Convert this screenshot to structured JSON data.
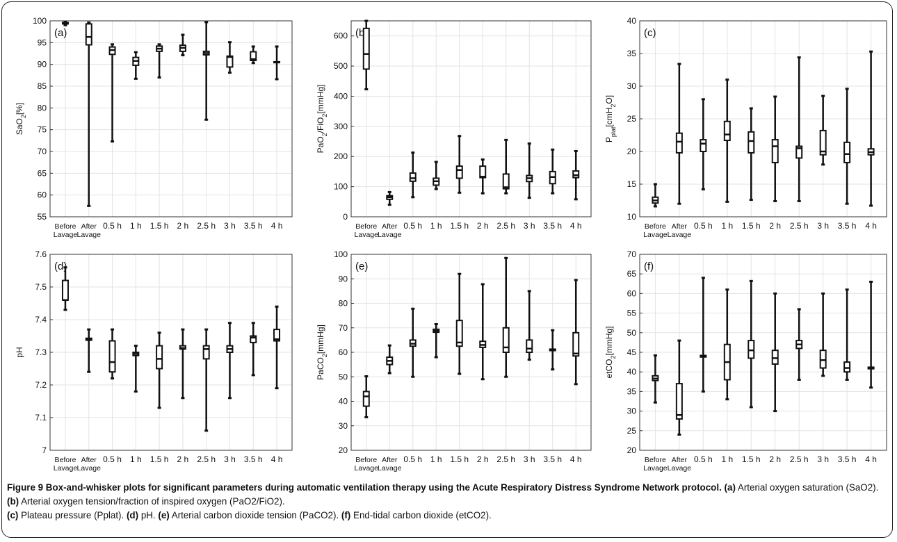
{
  "categories": [
    "Before Lavage",
    "After Lavage",
    "0.5 h",
    "1 h",
    "1.5 h",
    "2 h",
    "2.5 h",
    "3 h",
    "3.5 h",
    "4 h"
  ],
  "chart_data": [
    {
      "type": "boxplot",
      "panel_label": "(a)",
      "ylabel": "SaO2[%]",
      "ylim": [
        55,
        100
      ],
      "yticks": [
        55,
        60,
        65,
        70,
        75,
        80,
        85,
        90,
        95,
        100
      ],
      "grid": true,
      "boxes": [
        {
          "min": 99.0,
          "q1": 99.3,
          "median": 99.5,
          "q3": 99.6,
          "max": 99.8
        },
        {
          "min": 57.5,
          "q1": 94.5,
          "median": 96.3,
          "q3": 99.3,
          "max": 99.6
        },
        {
          "min": 72.3,
          "q1": 92.3,
          "median": 93.3,
          "q3": 94.0,
          "max": 94.6
        },
        {
          "min": 86.7,
          "q1": 89.8,
          "median": 90.8,
          "q3": 91.6,
          "max": 92.8
        },
        {
          "min": 87.0,
          "q1": 93.0,
          "median": 93.6,
          "q3": 94.2,
          "max": 94.6
        },
        {
          "min": 92.1,
          "q1": 93.0,
          "median": 93.8,
          "q3": 94.4,
          "max": 96.8
        },
        {
          "min": 77.3,
          "q1": 92.2,
          "median": 92.6,
          "q3": 93.0,
          "max": 99.7
        },
        {
          "min": 88.1,
          "q1": 89.4,
          "median": 91.7,
          "q3": 91.9,
          "max": 95.1
        },
        {
          "min": 90.3,
          "q1": 90.9,
          "median": 91.2,
          "q3": 92.9,
          "max": 94.1
        },
        {
          "min": 86.6,
          "q1": 90.4,
          "median": 90.5,
          "q3": 90.6,
          "max": 94.1
        }
      ]
    },
    {
      "type": "boxplot",
      "panel_label": "(b)",
      "ylabel": "PaO2/FiO2[mmHg]",
      "ylim": [
        0,
        650
      ],
      "yticks": [
        0,
        100,
        200,
        300,
        400,
        500,
        600
      ],
      "grid": true,
      "boxes": [
        {
          "min": 423,
          "q1": 490,
          "median": 540,
          "q3": 625,
          "max": 650
        },
        {
          "min": 40,
          "q1": 58,
          "median": 65,
          "q3": 70,
          "max": 82
        },
        {
          "min": 65,
          "q1": 118,
          "median": 128,
          "q3": 145,
          "max": 213
        },
        {
          "min": 92,
          "q1": 105,
          "median": 118,
          "q3": 128,
          "max": 182
        },
        {
          "min": 80,
          "q1": 128,
          "median": 155,
          "q3": 168,
          "max": 268
        },
        {
          "min": 78,
          "q1": 130,
          "median": 133,
          "q3": 168,
          "max": 190
        },
        {
          "min": 78,
          "q1": 93,
          "median": 98,
          "q3": 142,
          "max": 255
        },
        {
          "min": 63,
          "q1": 117,
          "median": 128,
          "q3": 137,
          "max": 243
        },
        {
          "min": 78,
          "q1": 110,
          "median": 132,
          "q3": 150,
          "max": 223
        },
        {
          "min": 58,
          "q1": 130,
          "median": 138,
          "q3": 152,
          "max": 218
        }
      ]
    },
    {
      "type": "boxplot",
      "panel_label": "(c)",
      "ylabel": "Pplat[cmH2O]",
      "ylim": [
        10,
        40
      ],
      "yticks": [
        10,
        15,
        20,
        25,
        30,
        35,
        40
      ],
      "grid": true,
      "boxes": [
        {
          "min": 11.6,
          "q1": 12.1,
          "median": 12.5,
          "q3": 13.0,
          "max": 15.0
        },
        {
          "min": 12.0,
          "q1": 19.8,
          "median": 21.5,
          "q3": 22.8,
          "max": 33.4
        },
        {
          "min": 14.2,
          "q1": 20.0,
          "median": 21.2,
          "q3": 21.8,
          "max": 28.0
        },
        {
          "min": 12.3,
          "q1": 21.7,
          "median": 22.6,
          "q3": 24.6,
          "max": 31.0
        },
        {
          "min": 12.6,
          "q1": 19.8,
          "median": 21.6,
          "q3": 23.0,
          "max": 26.6
        },
        {
          "min": 12.4,
          "q1": 18.3,
          "median": 20.8,
          "q3": 21.8,
          "max": 28.4
        },
        {
          "min": 12.4,
          "q1": 19.0,
          "median": 20.5,
          "q3": 20.8,
          "max": 34.4
        },
        {
          "min": 18.0,
          "q1": 19.5,
          "median": 20.0,
          "q3": 23.2,
          "max": 28.5
        },
        {
          "min": 12.0,
          "q1": 18.3,
          "median": 19.6,
          "q3": 21.4,
          "max": 29.6
        },
        {
          "min": 11.7,
          "q1": 19.5,
          "median": 19.9,
          "q3": 20.4,
          "max": 35.3
        }
      ]
    },
    {
      "type": "boxplot",
      "panel_label": "(d)",
      "ylabel": "pH",
      "ylim": [
        7,
        7.6
      ],
      "yticks": [
        7,
        7.1,
        7.2,
        7.3,
        7.4,
        7.5,
        7.6
      ],
      "grid": true,
      "boxes": [
        {
          "min": 7.43,
          "q1": 7.46,
          "median": 7.46,
          "q3": 7.52,
          "max": 7.56
        },
        {
          "min": 7.24,
          "q1": 7.337,
          "median": 7.34,
          "q3": 7.343,
          "max": 7.37
        },
        {
          "min": 7.22,
          "q1": 7.24,
          "median": 7.27,
          "q3": 7.335,
          "max": 7.37
        },
        {
          "min": 7.18,
          "q1": 7.29,
          "median": 7.295,
          "q3": 7.3,
          "max": 7.32
        },
        {
          "min": 7.13,
          "q1": 7.25,
          "median": 7.28,
          "q3": 7.32,
          "max": 7.36
        },
        {
          "min": 7.16,
          "q1": 7.31,
          "median": 7.313,
          "q3": 7.32,
          "max": 7.37
        },
        {
          "min": 7.06,
          "q1": 7.28,
          "median": 7.31,
          "q3": 7.32,
          "max": 7.37
        },
        {
          "min": 7.16,
          "q1": 7.3,
          "median": 7.31,
          "q3": 7.32,
          "max": 7.39
        },
        {
          "min": 7.23,
          "q1": 7.33,
          "median": 7.345,
          "q3": 7.35,
          "max": 7.39
        },
        {
          "min": 7.19,
          "q1": 7.335,
          "median": 7.34,
          "q3": 7.37,
          "max": 7.44
        }
      ]
    },
    {
      "type": "boxplot",
      "panel_label": "(e)",
      "ylabel": "PaCO2[mmHg]",
      "ylim": [
        20,
        100
      ],
      "yticks": [
        20,
        30,
        40,
        50,
        60,
        70,
        80,
        90,
        100
      ],
      "grid": true,
      "boxes": [
        {
          "min": 33.5,
          "q1": 38.0,
          "median": 42.0,
          "q3": 44.0,
          "max": 50.2
        },
        {
          "min": 51.5,
          "q1": 55.0,
          "median": 56.5,
          "q3": 58.0,
          "max": 62.8
        },
        {
          "min": 50.0,
          "q1": 62.5,
          "median": 63.5,
          "q3": 65.0,
          "max": 77.8
        },
        {
          "min": 58.0,
          "q1": 68.2,
          "median": 68.8,
          "q3": 69.4,
          "max": 71.5
        },
        {
          "min": 51.2,
          "q1": 62.5,
          "median": 64.0,
          "q3": 73.0,
          "max": 92.0
        },
        {
          "min": 49.0,
          "q1": 62.0,
          "median": 63.0,
          "q3": 64.5,
          "max": 87.8
        },
        {
          "min": 50.0,
          "q1": 60.0,
          "median": 62.0,
          "q3": 70.0,
          "max": 98.5
        },
        {
          "min": 57.0,
          "q1": 60.0,
          "median": 61.5,
          "q3": 65.0,
          "max": 85.0
        },
        {
          "min": 53.0,
          "q1": 60.7,
          "median": 61.0,
          "q3": 61.3,
          "max": 69.0
        },
        {
          "min": 47.0,
          "q1": 58.5,
          "median": 59.5,
          "q3": 68.0,
          "max": 89.5
        }
      ]
    },
    {
      "type": "boxplot",
      "panel_label": "(f)",
      "ylabel": "etCO2[mmHg]",
      "ylim": [
        20,
        70
      ],
      "yticks": [
        20,
        25,
        30,
        35,
        40,
        45,
        50,
        55,
        60,
        65,
        70
      ],
      "grid": true,
      "boxes": [
        {
          "min": 32.2,
          "q1": 37.8,
          "median": 38.3,
          "q3": 39.0,
          "max": 44.2
        },
        {
          "min": 24.0,
          "q1": 28.0,
          "median": 29.0,
          "q3": 37.0,
          "max": 48.0
        },
        {
          "min": 35.0,
          "q1": 43.8,
          "median": 44.0,
          "q3": 44.2,
          "max": 64.0
        },
        {
          "min": 33.0,
          "q1": 38.0,
          "median": 42.5,
          "q3": 47.0,
          "max": 61.0
        },
        {
          "min": 31.0,
          "q1": 43.5,
          "median": 45.5,
          "q3": 48.0,
          "max": 63.2
        },
        {
          "min": 30.0,
          "q1": 42.0,
          "median": 43.5,
          "q3": 45.5,
          "max": 60.0
        },
        {
          "min": 38.0,
          "q1": 46.0,
          "median": 47.0,
          "q3": 48.0,
          "max": 56.0
        },
        {
          "min": 39.0,
          "q1": 41.0,
          "median": 43.0,
          "q3": 45.5,
          "max": 60.0
        },
        {
          "min": 38.0,
          "q1": 40.0,
          "median": 41.0,
          "q3": 42.5,
          "max": 61.0
        },
        {
          "min": 36.0,
          "q1": 40.8,
          "median": 41.0,
          "q3": 41.2,
          "max": 63.0
        }
      ]
    }
  ],
  "caption": {
    "title": "Figure 9 Box-and-whisker plots for significant parameters during automatic ventilation therapy using the Acute Respiratory Distress Syndrome Network protocol.",
    "items": [
      {
        "label": "(a)",
        "text": "Arterial oxygen saturation (SaO2)."
      },
      {
        "label": "(b)",
        "text": "Arterial oxygen tension/fraction of inspired oxygen (PaO2/FiO2)."
      },
      {
        "label": "(c)",
        "text": "Plateau pressure (Pplat)."
      },
      {
        "label": "(d)",
        "text": "pH."
      },
      {
        "label": "(e)",
        "text": "Arterial carbon dioxide tension (PaCO2)."
      },
      {
        "label": "(f)",
        "text": "End-tidal carbon dioxide (etCO2)."
      }
    ]
  }
}
